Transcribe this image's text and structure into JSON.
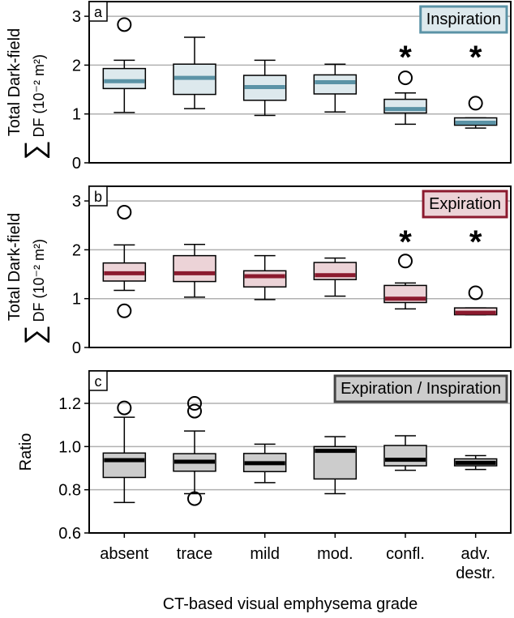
{
  "figure": {
    "xlabel": "CT-based visual emphysema grade",
    "categories": [
      [
        "absent"
      ],
      [
        "trace"
      ],
      [
        "mild"
      ],
      [
        "mod."
      ],
      [
        "confl."
      ],
      [
        "adv.",
        "destr."
      ]
    ]
  },
  "chart_data": [
    {
      "type": "box",
      "panel": "a",
      "title": "Inspiration",
      "ylabel_line1": "Total Dark-field",
      "ylabel_symbol": "∑",
      "ylabel_line2": "DF (10⁻² m²)",
      "ylim": [
        0,
        3.3
      ],
      "yticks": [
        "0",
        "1",
        "2",
        "3"
      ],
      "ytick_values": [
        0,
        1,
        2,
        3
      ],
      "grid": true,
      "accent_color": "#5b93a6",
      "fill_color": "#dde9ed",
      "boxes": [
        {
          "category": "absent",
          "q1": 1.52,
          "median": 1.67,
          "q3": 1.93,
          "whisker_low": 1.03,
          "whisker_high": 2.1,
          "outliers": [
            2.83
          ],
          "significant": false
        },
        {
          "category": "trace",
          "q1": 1.4,
          "median": 1.74,
          "q3": 2.02,
          "whisker_low": 1.11,
          "whisker_high": 2.57,
          "outliers": [],
          "significant": false
        },
        {
          "category": "mild",
          "q1": 1.28,
          "median": 1.55,
          "q3": 1.79,
          "whisker_low": 0.97,
          "whisker_high": 2.1,
          "outliers": [],
          "significant": false
        },
        {
          "category": "mod.",
          "q1": 1.41,
          "median": 1.65,
          "q3": 1.8,
          "whisker_low": 1.04,
          "whisker_high": 2.02,
          "outliers": [],
          "significant": false
        },
        {
          "category": "confl.",
          "q1": 1.02,
          "median": 1.1,
          "q3": 1.3,
          "whisker_low": 0.79,
          "whisker_high": 1.43,
          "outliers": [
            1.74
          ],
          "significant": true
        },
        {
          "category": "adv. destr.",
          "q1": 0.77,
          "median": 0.82,
          "q3": 0.92,
          "whisker_low": 0.71,
          "whisker_high": 0.92,
          "outliers": [
            1.22
          ],
          "significant": true
        }
      ]
    },
    {
      "type": "box",
      "panel": "b",
      "title": "Expiration",
      "ylabel_line1": "Total Dark-field",
      "ylabel_symbol": "∑",
      "ylabel_line2": "DF (10⁻² m²)",
      "ylim": [
        0,
        3.3
      ],
      "yticks": [
        "0",
        "1",
        "2",
        "3"
      ],
      "ytick_values": [
        0,
        1,
        2,
        3
      ],
      "grid": true,
      "accent_color": "#8b1a2e",
      "fill_color": "#ecd3d7",
      "boxes": [
        {
          "category": "absent",
          "q1": 1.36,
          "median": 1.52,
          "q3": 1.73,
          "whisker_low": 1.17,
          "whisker_high": 2.1,
          "outliers": [
            2.77,
            0.75
          ],
          "significant": false
        },
        {
          "category": "trace",
          "q1": 1.35,
          "median": 1.52,
          "q3": 1.88,
          "whisker_low": 1.03,
          "whisker_high": 2.11,
          "outliers": [],
          "significant": false
        },
        {
          "category": "mild",
          "q1": 1.24,
          "median": 1.46,
          "q3": 1.57,
          "whisker_low": 0.98,
          "whisker_high": 1.88,
          "outliers": [],
          "significant": false
        },
        {
          "category": "mod.",
          "q1": 1.39,
          "median": 1.48,
          "q3": 1.74,
          "whisker_low": 1.05,
          "whisker_high": 1.83,
          "outliers": [],
          "significant": false
        },
        {
          "category": "confl.",
          "q1": 0.92,
          "median": 1.0,
          "q3": 1.27,
          "whisker_low": 0.79,
          "whisker_high": 1.32,
          "outliers": [
            1.77
          ],
          "significant": true
        },
        {
          "category": "adv. destr.",
          "q1": 0.67,
          "median": 0.71,
          "q3": 0.81,
          "whisker_low": 0.67,
          "whisker_high": 0.81,
          "outliers": [
            1.12
          ],
          "significant": true
        }
      ]
    },
    {
      "type": "box",
      "panel": "c",
      "title": "Expiration / Inspiration",
      "ylabel_line1": "Ratio",
      "ylabel_symbol": "",
      "ylabel_line2": "",
      "ylim": [
        0.6,
        1.35
      ],
      "yticks": [
        "0.6",
        "0.8",
        "1.0",
        "1.2"
      ],
      "ytick_values": [
        0.6,
        0.8,
        1.0,
        1.2
      ],
      "grid": true,
      "accent_color": "#000000",
      "fill_color": "#cccccc",
      "boxes": [
        {
          "category": "absent",
          "q1": 0.857,
          "median": 0.937,
          "q3": 0.97,
          "whisker_low": 0.741,
          "whisker_high": 1.136,
          "outliers": [
            1.179
          ],
          "significant": false
        },
        {
          "category": "trace",
          "q1": 0.886,
          "median": 0.93,
          "q3": 0.967,
          "whisker_low": 0.782,
          "whisker_high": 1.072,
          "outliers": [
            1.2,
            1.164,
            0.759
          ],
          "significant": false
        },
        {
          "category": "mild",
          "q1": 0.884,
          "median": 0.923,
          "q3": 0.968,
          "whisker_low": 0.833,
          "whisker_high": 1.011,
          "outliers": [],
          "significant": false
        },
        {
          "category": "mod.",
          "q1": 0.85,
          "median": 0.98,
          "q3": 1.0,
          "whisker_low": 0.782,
          "whisker_high": 1.046,
          "outliers": [],
          "significant": false
        },
        {
          "category": "confl.",
          "q1": 0.911,
          "median": 0.939,
          "q3": 1.005,
          "whisker_low": 0.89,
          "whisker_high": 1.05,
          "outliers": [],
          "significant": false
        },
        {
          "category": "adv. destr.",
          "q1": 0.911,
          "median": 0.925,
          "q3": 0.943,
          "whisker_low": 0.894,
          "whisker_high": 0.958,
          "outliers": [],
          "significant": false
        }
      ]
    }
  ]
}
